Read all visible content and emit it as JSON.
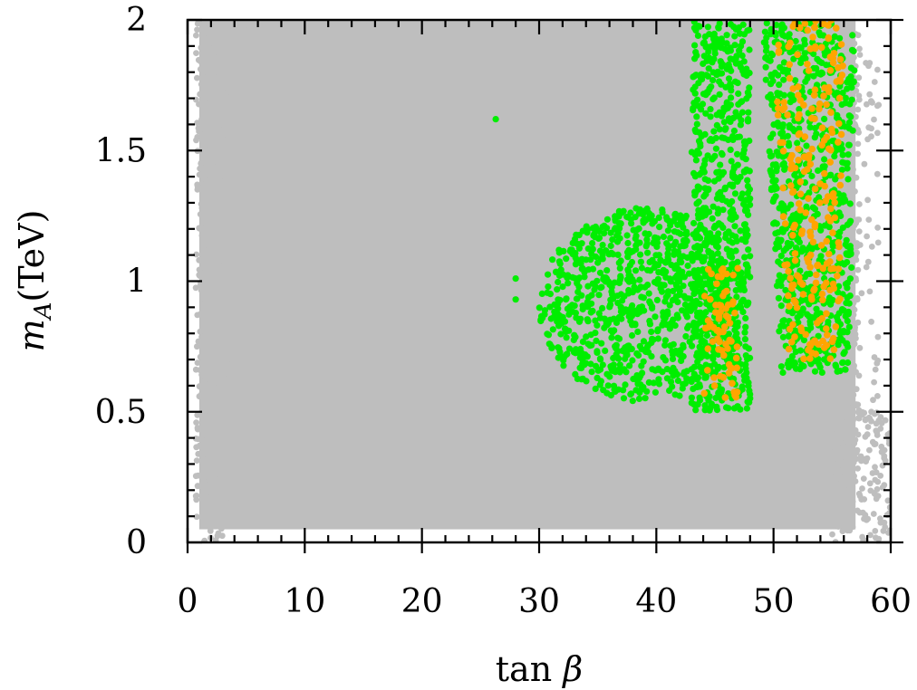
{
  "chart_data": {
    "type": "scatter",
    "xlabel": "tan β",
    "ylabel": "m_A(TeV)",
    "ylabel_main": "m",
    "ylabel_sub": "A",
    "ylabel_unit": "(TeV)",
    "xlim": [
      0,
      60
    ],
    "ylim": [
      0,
      2
    ],
    "x_ticks": [
      0,
      10,
      20,
      30,
      40,
      50,
      60
    ],
    "y_ticks": [
      0,
      0.5,
      1,
      1.5,
      2
    ],
    "x_tick_labels": [
      "0",
      "10",
      "20",
      "30",
      "40",
      "50",
      "60"
    ],
    "y_tick_labels": [
      "0",
      "0.5",
      "1",
      "1.5",
      "2"
    ],
    "grid": false,
    "legend": "none",
    "colors": {
      "gray": "#bebebe",
      "green": "#00ee00",
      "orange": "#ffa500"
    },
    "series": [
      {
        "color": "gray",
        "regions": [
          {
            "x": [
              1,
              57
            ],
            "y": [
              0.05,
              2.0
            ]
          },
          {
            "x": [
              1.2,
              3.5
            ],
            "y": [
              0.0,
              2.0
            ]
          },
          {
            "x": [
              55,
              60
            ],
            "y": [
              0.0,
              0.5
            ]
          },
          {
            "x": [
              56,
              59
            ],
            "y": [
              0.4,
              1.9
            ]
          }
        ]
      },
      {
        "color": "green",
        "clusters": [
          {
            "x": [
              30,
              48
            ],
            "y": [
              0.52,
              1.3
            ]
          },
          {
            "x": [
              43,
              48
            ],
            "y": [
              0.5,
              2.0
            ]
          },
          {
            "x": [
              49,
              57
            ],
            "y": [
              0.65,
              2.0
            ]
          }
        ],
        "points": [
          [
            26.3,
            1.62
          ],
          [
            28.0,
            1.01
          ],
          [
            28.0,
            0.93
          ],
          [
            47.5,
            1.42
          ],
          [
            50.8,
            0.65
          ]
        ]
      },
      {
        "color": "orange",
        "clusters": [
          {
            "x": [
              44,
              47
            ],
            "y": [
              0.55,
              1.05
            ]
          },
          {
            "x": [
              50,
              56
            ],
            "y": [
              0.7,
              2.0
            ]
          }
        ]
      }
    ]
  }
}
